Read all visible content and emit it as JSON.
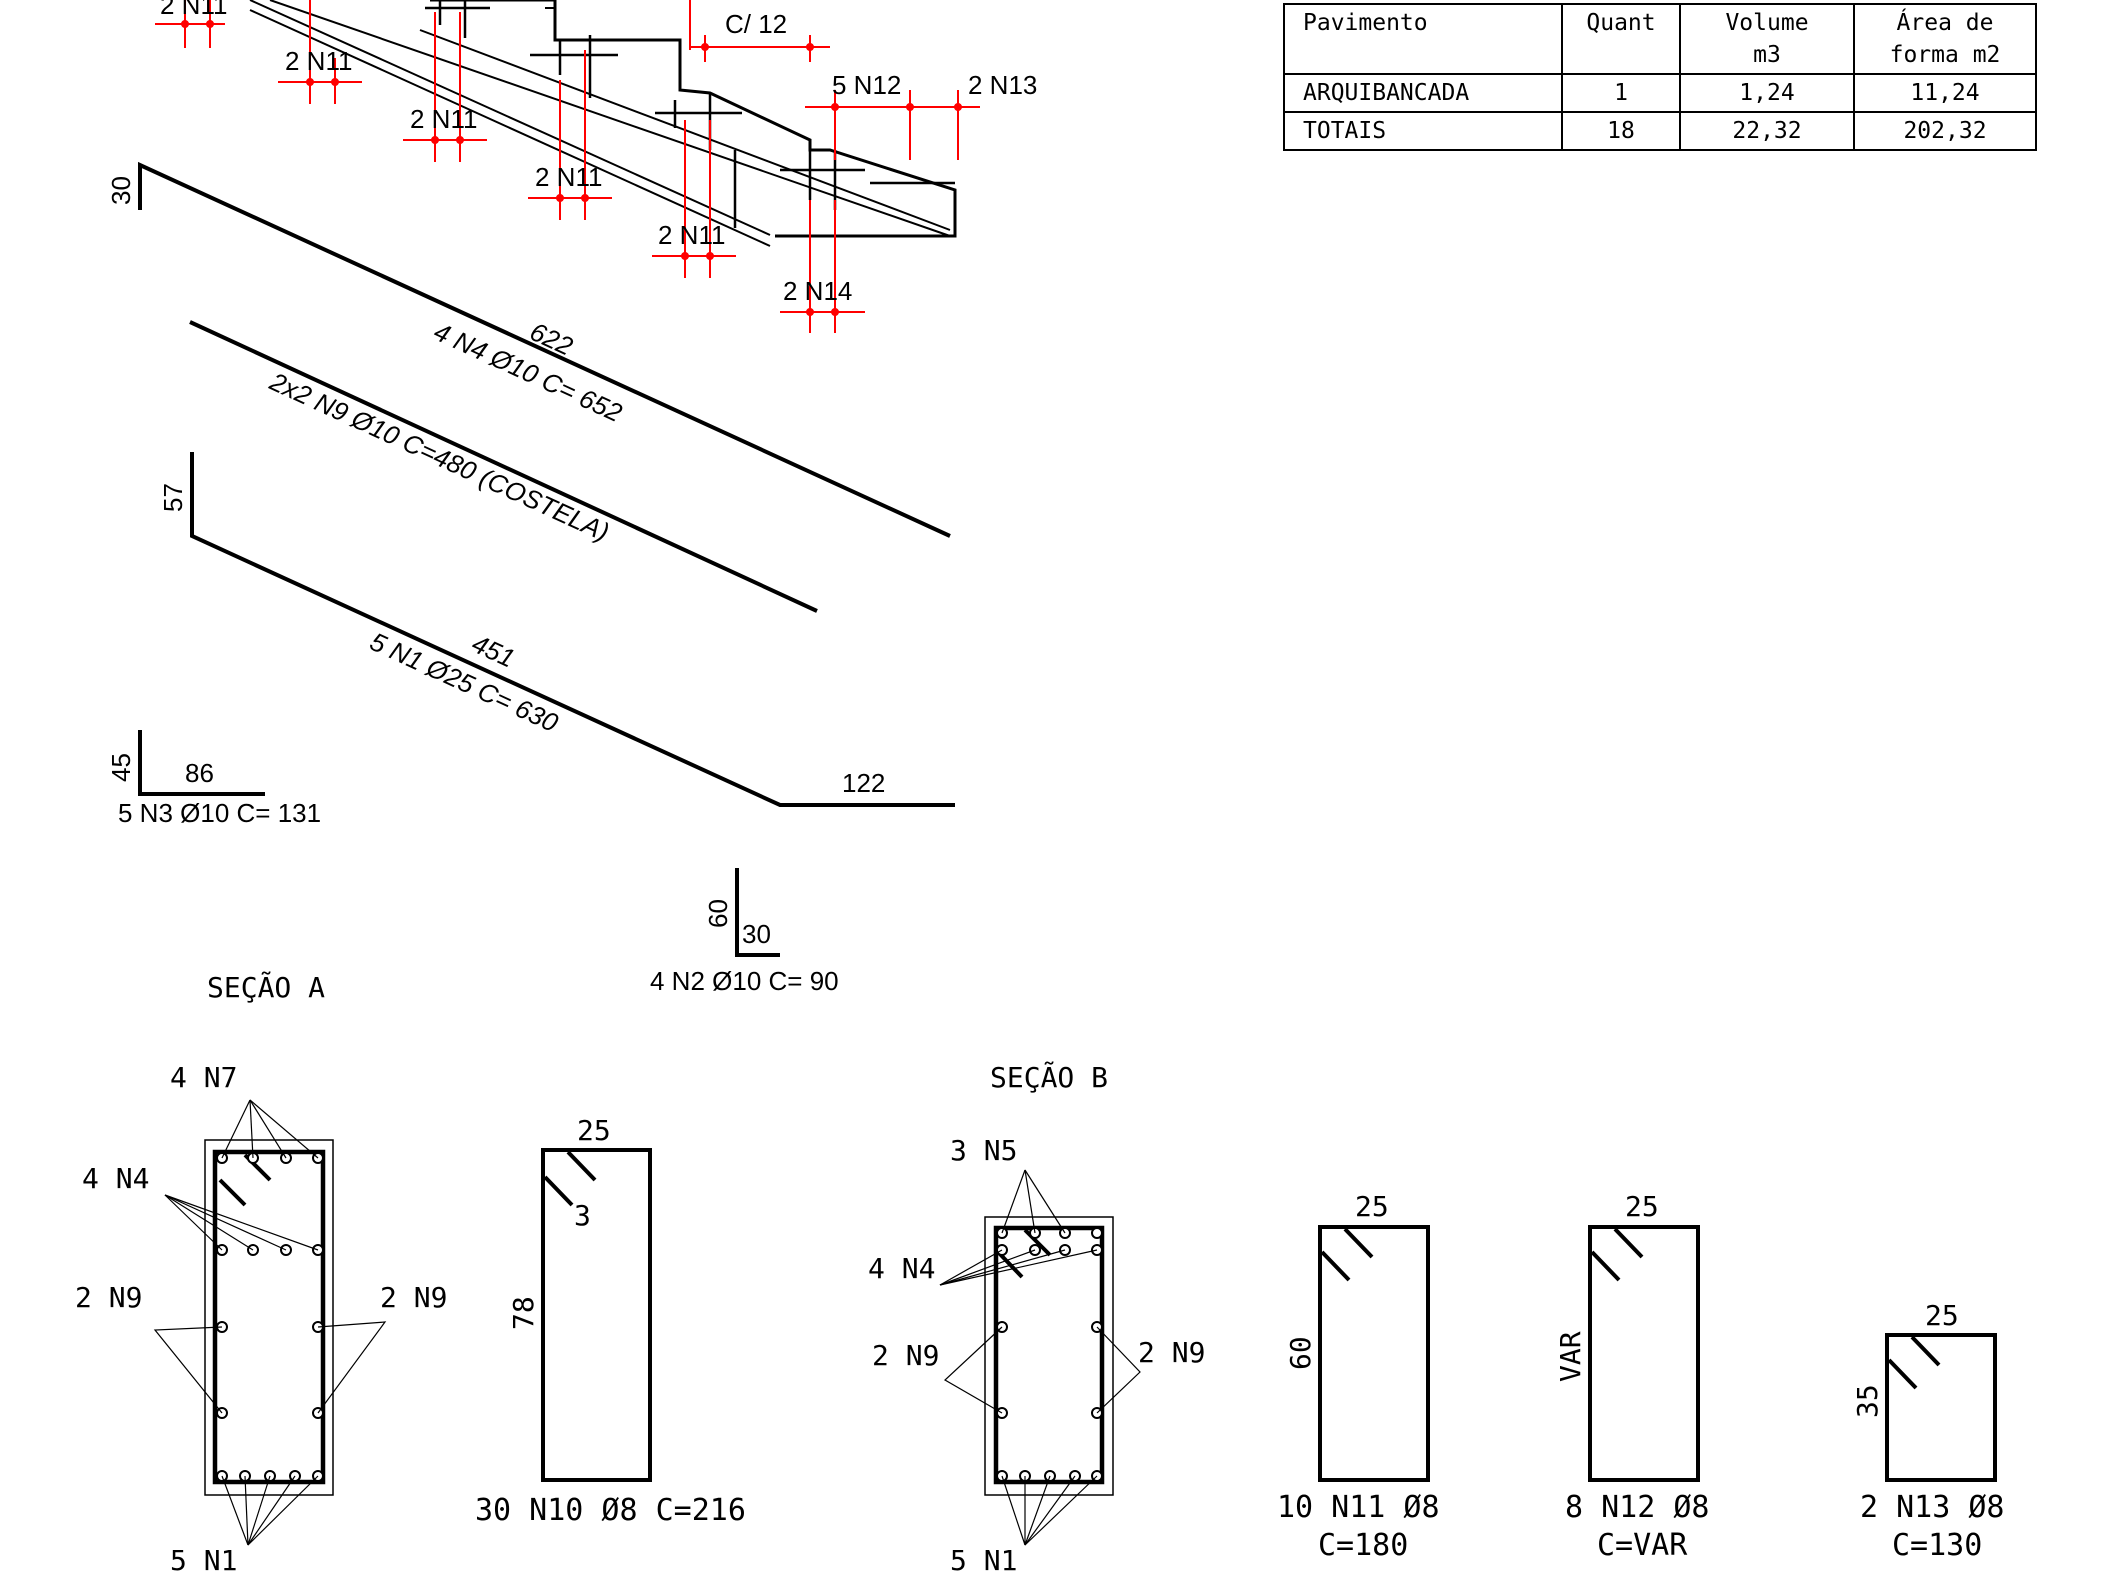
{
  "table": {
    "headers": [
      {
        "line1": "Pavimento",
        "line2": ""
      },
      {
        "line1": "Quant",
        "line2": ""
      },
      {
        "line1": "Volume",
        "line2": "m3"
      },
      {
        "line1": "Área de",
        "line2": "forma m2"
      }
    ],
    "rows": [
      {
        "pavimento": "ARQUIBANCADA",
        "quant": "1",
        "volume": "1,24",
        "area": "11,24"
      },
      {
        "pavimento": "TOTAIS",
        "quant": "18",
        "volume": "22,32",
        "area": "202,32"
      }
    ]
  },
  "elevation": {
    "n11_label": "2 N11",
    "spacing": "C/ 12",
    "n12_label": "5 N12",
    "n13_label": "2 N13",
    "n14_label": "2 N14"
  },
  "bars": {
    "n4": {
      "hook": "30",
      "length": "622",
      "spec": "4 N4 Ø10 C= 652"
    },
    "n9": {
      "spec": "2x2 N9 Ø10 C=480 (COSTELA)"
    },
    "n1": {
      "hook": "57",
      "length": "451",
      "spec": "5 N1 Ø25 C= 630",
      "tail": "122"
    },
    "n3": {
      "leg": "45",
      "length": "86",
      "spec": "5 N3 Ø10 C= 131"
    },
    "n2": {
      "leg": "60",
      "length": "30",
      "spec": "4 N2 Ø10 C= 90"
    }
  },
  "section_a": {
    "title": "SEÇÃO A",
    "n7": "4 N7",
    "n4": "4 N4",
    "n9_left": "2 N9",
    "n9_right": "2 N9",
    "n1": "5 N1"
  },
  "section_b": {
    "title": "SEÇÃO B",
    "n5": "3 N5",
    "n4": "4 N4",
    "n9_left": "2 N9",
    "n9_right": "2 N9",
    "n1": "5 N1"
  },
  "stirrups": [
    {
      "id": "n10",
      "width": "25",
      "height": "78",
      "hook": "3",
      "spec": "30 N10 Ø8 C=216",
      "length_note": ""
    },
    {
      "id": "n11",
      "width": "25",
      "height": "60",
      "hook": "",
      "spec": "10 N11 Ø8",
      "length_note": "C=180"
    },
    {
      "id": "n12",
      "width": "25",
      "height": "VAR",
      "hook": "",
      "spec": "8 N12 Ø8",
      "length_note": "C=VAR"
    },
    {
      "id": "n13",
      "width": "25",
      "height": "35",
      "hook": "",
      "spec": "2 N13 Ø8",
      "length_note": "C=130"
    }
  ]
}
